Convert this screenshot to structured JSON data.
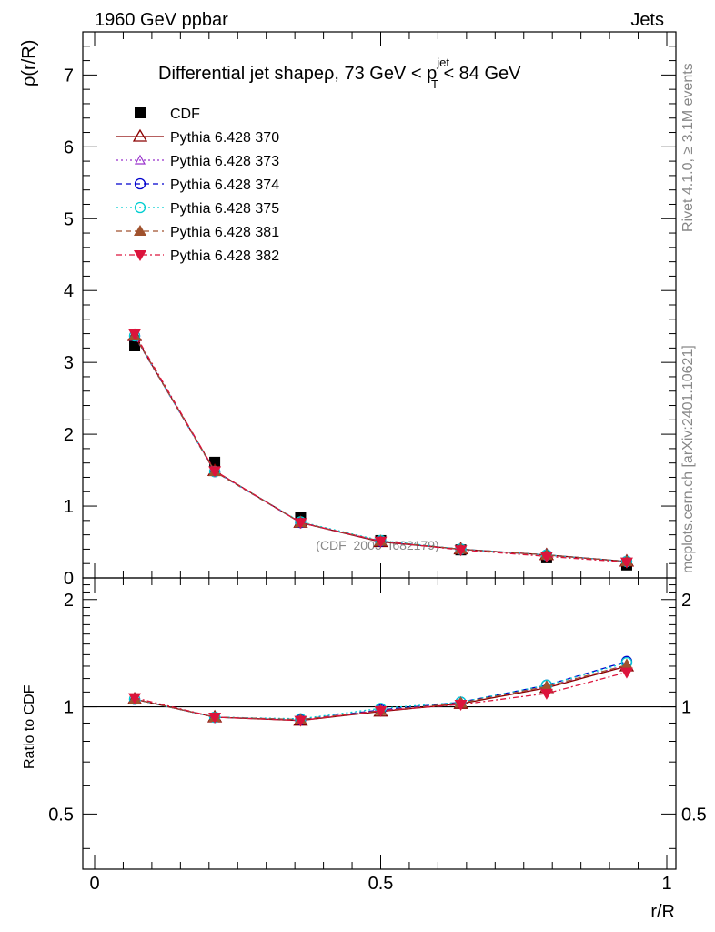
{
  "header": {
    "left": "1960 GeV ppbar",
    "right": "Jets"
  },
  "side": {
    "rivet": "Rivet 4.1.0, ≥ 3.1M events",
    "mcplots": "mcplots.cern.ch [arXiv:2401.10621]"
  },
  "title": {
    "prefix": "Differential jet shapeρ, 73 GeV < p",
    "sup": "jet",
    "sub": "T",
    "suffix": " < 84 GeV"
  },
  "watermark": "(CDF_2005_I682179)",
  "colors": {
    "cdf": "#000000",
    "p370": "#8b0000",
    "p373": "#9932cc",
    "p374": "#0000cd",
    "p375": "#00ced1",
    "p381": "#a0522d",
    "p382": "#dc143c"
  },
  "chart_data": [
    {
      "type": "line",
      "panel": "main",
      "ylabel": "ρ(r/R)",
      "xlim": [
        0,
        1
      ],
      "ylim": [
        0,
        7.6
      ],
      "yticks": [
        0,
        1,
        2,
        3,
        4,
        5,
        6,
        7
      ],
      "ytick_labels": [
        "0",
        "1",
        "2",
        "3",
        "4",
        "5",
        "6",
        "7"
      ],
      "x": [
        0.07,
        0.21,
        0.36,
        0.5,
        0.64,
        0.79,
        0.93
      ],
      "legend": "top-left",
      "series": [
        {
          "name": "CDF",
          "key": "cdf",
          "marker": "square",
          "dash": "none",
          "values": [
            3.23,
            1.61,
            0.84,
            0.52,
            0.39,
            0.28,
            0.18
          ]
        },
        {
          "name": "Pythia 6.428 370",
          "key": "p370",
          "marker": "triangle-open",
          "dash": "solid",
          "values": [
            3.37,
            1.49,
            0.77,
            0.5,
            0.4,
            0.32,
            0.23
          ]
        },
        {
          "name": "Pythia 6.428 373",
          "key": "p373",
          "marker": "triangle-open-small",
          "dash": "dotted",
          "values": [
            3.36,
            1.48,
            0.77,
            0.51,
            0.4,
            0.32,
            0.23
          ]
        },
        {
          "name": "Pythia 6.428 374",
          "key": "p374",
          "marker": "circle-open",
          "dash": "dashed",
          "values": [
            3.37,
            1.48,
            0.77,
            0.51,
            0.4,
            0.32,
            0.23
          ]
        },
        {
          "name": "Pythia 6.428 375",
          "key": "p375",
          "marker": "circle-open",
          "dash": "dotted",
          "values": [
            3.37,
            1.48,
            0.78,
            0.52,
            0.4,
            0.32,
            0.23
          ]
        },
        {
          "name": "Pythia 6.428 381",
          "key": "p381",
          "marker": "triangle-filled",
          "dash": "dashed",
          "values": [
            3.37,
            1.48,
            0.77,
            0.51,
            0.4,
            0.32,
            0.23
          ]
        },
        {
          "name": "Pythia 6.428 382",
          "key": "p382",
          "marker": "triangle-down-filled",
          "dash": "dashdot",
          "values": [
            3.4,
            1.49,
            0.77,
            0.51,
            0.39,
            0.3,
            0.22
          ]
        }
      ]
    },
    {
      "type": "line",
      "panel": "ratio",
      "ylabel": "Ratio to CDF",
      "xlabel": "r/R",
      "xlim": [
        0,
        1
      ],
      "ylim": [
        0.35,
        2.3
      ],
      "yscale": "log",
      "yticks": [
        0.5,
        1,
        2
      ],
      "ytick_labels": [
        "0.5",
        "1",
        "2"
      ],
      "xticks": [
        0,
        0.5,
        1
      ],
      "xtick_labels": [
        "0",
        "0.5",
        "1"
      ],
      "x": [
        0.07,
        0.21,
        0.36,
        0.5,
        0.64,
        0.79,
        0.93
      ],
      "series": [
        {
          "name": "Pythia 6.428 370",
          "key": "p370",
          "marker": "triangle-open",
          "dash": "solid",
          "values": [
            1.05,
            0.935,
            0.915,
            0.97,
            1.02,
            1.13,
            1.3
          ]
        },
        {
          "name": "Pythia 6.428 373",
          "key": "p373",
          "marker": "triangle-open-small",
          "dash": "dotted",
          "values": [
            1.05,
            0.935,
            0.92,
            0.975,
            1.03,
            1.14,
            1.31
          ]
        },
        {
          "name": "Pythia 6.428 374",
          "key": "p374",
          "marker": "circle-open",
          "dash": "dashed",
          "values": [
            1.05,
            0.935,
            0.92,
            0.98,
            1.03,
            1.15,
            1.34
          ]
        },
        {
          "name": "Pythia 6.428 375",
          "key": "p375",
          "marker": "circle-open",
          "dash": "dotted",
          "values": [
            1.05,
            0.935,
            0.925,
            0.99,
            1.03,
            1.15,
            1.33
          ]
        },
        {
          "name": "Pythia 6.428 381",
          "key": "p381",
          "marker": "triangle-filled",
          "dash": "dashed",
          "values": [
            1.05,
            0.935,
            0.92,
            0.975,
            1.025,
            1.14,
            1.31
          ]
        },
        {
          "name": "Pythia 6.428 382",
          "key": "p382",
          "marker": "triangle-down-filled",
          "dash": "dashdot",
          "values": [
            1.06,
            0.935,
            0.915,
            0.975,
            1.015,
            1.09,
            1.25
          ]
        }
      ]
    }
  ]
}
